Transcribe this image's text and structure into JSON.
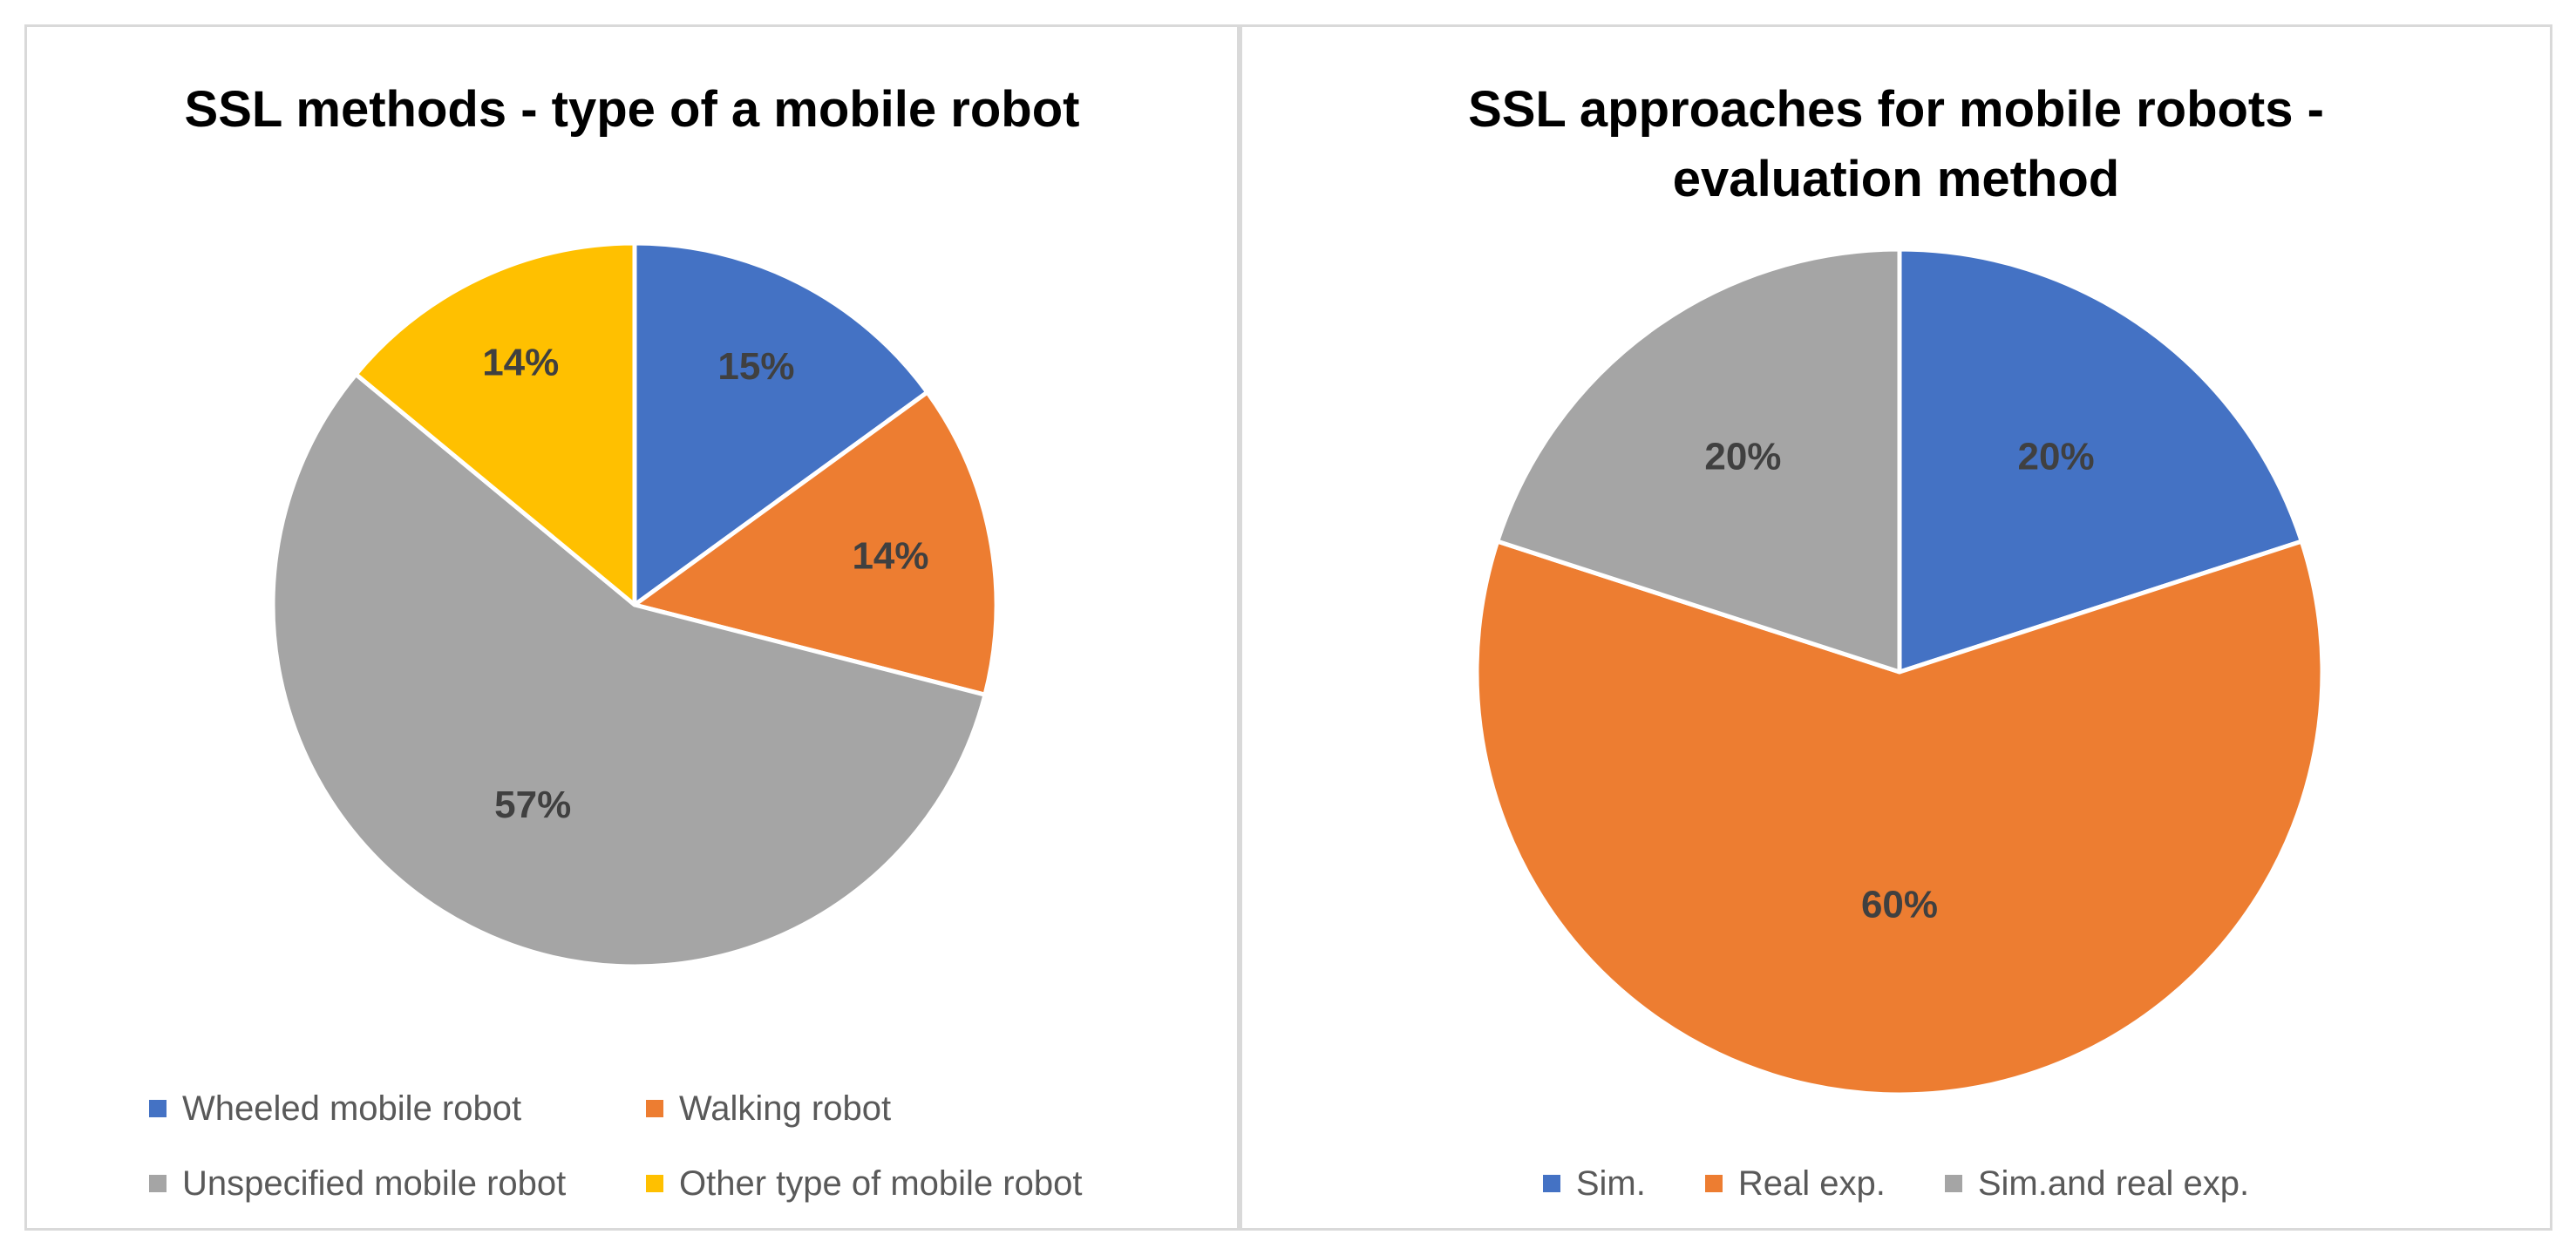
{
  "chart_data": [
    {
      "type": "pie",
      "title": "SSL methods - type of a mobile robot",
      "categories": [
        "Wheeled mobile robot",
        "Walking robot",
        "Unspecified mobile robot",
        "Other type of mobile robot"
      ],
      "values": [
        15,
        14,
        57,
        14
      ],
      "labels": [
        "15%",
        "14%",
        "57%",
        "14%"
      ],
      "colors": [
        "#4472C4",
        "#ED7D31",
        "#A5A5A5",
        "#FFC000"
      ],
      "legend": [
        "Wheeled mobile robot",
        "Walking robot",
        "Unspecified mobile robot",
        "Other type of mobile robot"
      ],
      "legend_position": "bottom"
    },
    {
      "type": "pie",
      "title": "SSL approaches for mobile robots - evaluation method",
      "categories": [
        "Sim.",
        "Real exp.",
        "Sim.and real exp."
      ],
      "values": [
        20,
        60,
        20
      ],
      "labels": [
        "20%",
        "60%",
        "20%"
      ],
      "colors": [
        "#4472C4",
        "#ED7D31",
        "#A5A5A5"
      ],
      "legend": [
        "Sim.",
        "Real exp.",
        "Sim.and real exp."
      ],
      "legend_position": "bottom"
    }
  ],
  "left": {
    "title": "SSL methods - type of a mobile robot",
    "legend": [
      {
        "label": "Wheeled mobile robot",
        "color": "#4472C4"
      },
      {
        "label": "Walking robot",
        "color": "#ED7D31"
      },
      {
        "label": "Unspecified mobile robot",
        "color": "#A5A5A5"
      },
      {
        "label": "Other type of mobile robot",
        "color": "#FFC000"
      }
    ]
  },
  "right": {
    "title_line1": "SSL approaches for mobile robots -",
    "title_line2": "evaluation method",
    "legend": [
      {
        "label": "Sim.",
        "color": "#4472C4"
      },
      {
        "label": "Real exp.",
        "color": "#ED7D31"
      },
      {
        "label": "Sim.and real exp.",
        "color": "#A5A5A5"
      }
    ]
  }
}
